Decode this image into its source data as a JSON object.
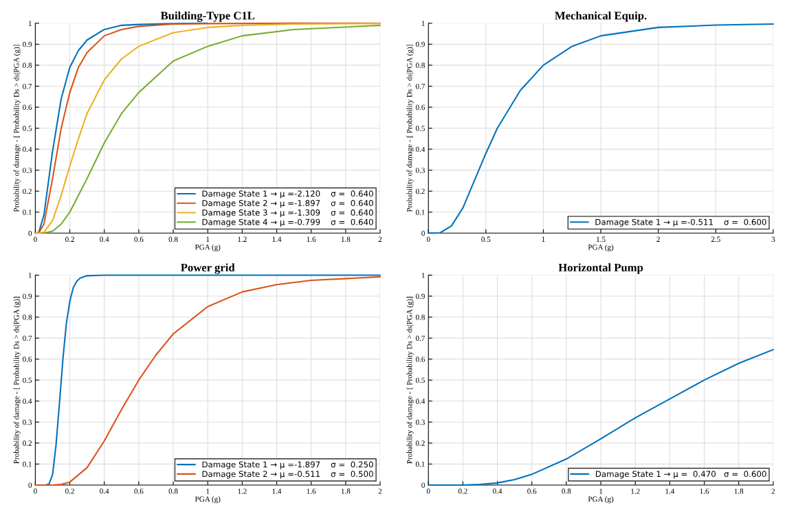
{
  "chart_data": [
    {
      "type": "line",
      "title": "Building-Type C1L",
      "xlabel": "PGA (g)",
      "ylabel": "Probability of damage - [ Probability Ds > ds|PGA (g)]",
      "xlim": [
        0,
        2
      ],
      "ylim": [
        0,
        1
      ],
      "xticks": [
        0,
        0.2,
        0.4,
        0.6,
        0.8,
        1,
        1.2,
        1.4,
        1.6,
        1.8,
        2
      ],
      "yticks": [
        0,
        0.1,
        0.2,
        0.3,
        0.4,
        0.5,
        0.6,
        0.7,
        0.8,
        0.9,
        1
      ],
      "grid": true,
      "legend": "bottom right",
      "series": [
        {
          "name": "Damage State 1 → μ =-2.120    σ =  0.640",
          "color": "#0072bd",
          "x": [
            0,
            0.02,
            0.05,
            0.1,
            0.15,
            0.2,
            0.25,
            0.3,
            0.4,
            0.5,
            0.6,
            0.8,
            1
          ],
          "values": [
            0,
            0.003,
            0.086,
            0.39,
            0.64,
            0.79,
            0.87,
            0.92,
            0.97,
            0.99,
            0.994,
            0.998,
            1
          ]
        },
        {
          "name": "Damage State 2 → μ =-1.897    σ =  0.640",
          "color": "#d95319",
          "x": [
            0,
            0.02,
            0.05,
            0.1,
            0.15,
            0.2,
            0.25,
            0.3,
            0.4,
            0.5,
            0.6,
            0.8,
            1,
            1.5,
            2
          ],
          "values": [
            0,
            0.001,
            0.043,
            0.26,
            0.5,
            0.67,
            0.79,
            0.86,
            0.94,
            0.97,
            0.985,
            0.996,
            0.998,
            1,
            1
          ]
        },
        {
          "name": "Damage State 3 → μ =-1.309    σ =  0.640",
          "color": "#edb120",
          "x": [
            0,
            0.02,
            0.05,
            0.1,
            0.15,
            0.2,
            0.25,
            0.3,
            0.4,
            0.5,
            0.6,
            0.8,
            1,
            1.2,
            1.5,
            2
          ],
          "values": [
            0,
            0,
            0.004,
            0.06,
            0.18,
            0.32,
            0.45,
            0.57,
            0.73,
            0.83,
            0.89,
            0.955,
            0.98,
            0.99,
            0.996,
            0.999
          ]
        },
        {
          "name": "Damage State 4 → μ =-0.799    σ =  0.640",
          "color": "#77ac30",
          "x": [
            0.05,
            0.1,
            0.15,
            0.2,
            0.25,
            0.3,
            0.4,
            0.5,
            0.6,
            0.8,
            1,
            1.2,
            1.5,
            2
          ],
          "values": [
            0,
            0.009,
            0.043,
            0.1,
            0.18,
            0.26,
            0.43,
            0.57,
            0.67,
            0.82,
            0.89,
            0.94,
            0.97,
            0.99
          ]
        }
      ]
    },
    {
      "type": "line",
      "title": "Mechanical Equip.",
      "xlabel": "PGA (g)",
      "ylabel": "Probability of damage - [ Probability Ds > ds|PGA (g)]",
      "xlim": [
        0,
        3
      ],
      "ylim": [
        0,
        1
      ],
      "xticks": [
        0,
        0.5,
        1,
        1.5,
        2,
        2.5,
        3
      ],
      "yticks": [
        0,
        0.1,
        0.2,
        0.3,
        0.4,
        0.5,
        0.6,
        0.7,
        0.8,
        0.9,
        1
      ],
      "grid": true,
      "legend": "bottom right",
      "series": [
        {
          "name": "Damage State 1 → μ =-0.511    σ =  0.600",
          "color": "#0072bd",
          "x": [
            0,
            0.05,
            0.1,
            0.2,
            0.3,
            0.4,
            0.5,
            0.6,
            0.8,
            1,
            1.25,
            1.5,
            2,
            2.5,
            3
          ],
          "values": [
            0,
            0,
            0.001,
            0.034,
            0.12,
            0.25,
            0.38,
            0.5,
            0.68,
            0.8,
            0.89,
            0.94,
            0.98,
            0.991,
            0.996
          ]
        }
      ]
    },
    {
      "type": "line",
      "title": "Power grid",
      "xlabel": "PGA (g)",
      "ylabel": "Probability of damage - [ Probability Ds > ds|PGA (g)]",
      "xlim": [
        0,
        2
      ],
      "ylim": [
        0,
        1
      ],
      "xticks": [
        0,
        0.2,
        0.4,
        0.6,
        0.8,
        1,
        1.2,
        1.4,
        1.6,
        1.8,
        2
      ],
      "yticks": [
        0,
        0.1,
        0.2,
        0.3,
        0.4,
        0.5,
        0.6,
        0.7,
        0.8,
        0.9,
        1
      ],
      "grid": true,
      "legend": "bottom right",
      "series": [
        {
          "name": "Damage State 1 → μ =-1.897    σ =  0.250",
          "color": "#0072bd",
          "x": [
            0,
            0.06,
            0.08,
            0.1,
            0.12,
            0.14,
            0.16,
            0.18,
            0.2,
            0.22,
            0.24,
            0.26,
            0.3,
            0.4,
            2
          ],
          "values": [
            0,
            0,
            0.006,
            0.05,
            0.19,
            0.39,
            0.6,
            0.77,
            0.875,
            0.94,
            0.97,
            0.986,
            0.997,
            1,
            1
          ]
        },
        {
          "name": "Damage State 2 → μ =-0.511    σ =  0.500",
          "color": "#d95319",
          "x": [
            0,
            0.1,
            0.15,
            0.2,
            0.3,
            0.4,
            0.5,
            0.6,
            0.7,
            0.8,
            1,
            1.2,
            1.4,
            1.6,
            2
          ],
          "values": [
            0,
            0,
            0.003,
            0.014,
            0.083,
            0.21,
            0.36,
            0.5,
            0.62,
            0.72,
            0.85,
            0.92,
            0.955,
            0.975,
            0.992
          ]
        }
      ]
    },
    {
      "type": "line",
      "title": "Horizontal Pump",
      "xlabel": "PGA (g)",
      "ylabel": "Probability of damage - [ Probability Ds > ds|PGA (g)]",
      "xlim": [
        0,
        2
      ],
      "ylim": [
        0,
        1
      ],
      "xticks": [
        0,
        0.2,
        0.4,
        0.6,
        0.8,
        1,
        1.2,
        1.4,
        1.6,
        1.8,
        2
      ],
      "yticks": [
        0,
        0.1,
        0.2,
        0.3,
        0.4,
        0.5,
        0.6,
        0.7,
        0.8,
        0.9,
        1
      ],
      "grid": true,
      "legend": "bottom right",
      "series": [
        {
          "name": "Damage State 1 → μ =  0.470   σ =  0.600",
          "color": "#0072bd",
          "x": [
            0,
            0.2,
            0.3,
            0.4,
            0.5,
            0.6,
            0.8,
            1,
            1.2,
            1.4,
            1.6,
            1.8,
            2
          ],
          "values": [
            0,
            0,
            0.003,
            0.01,
            0.026,
            0.051,
            0.124,
            0.22,
            0.32,
            0.41,
            0.5,
            0.58,
            0.645
          ]
        }
      ]
    }
  ]
}
